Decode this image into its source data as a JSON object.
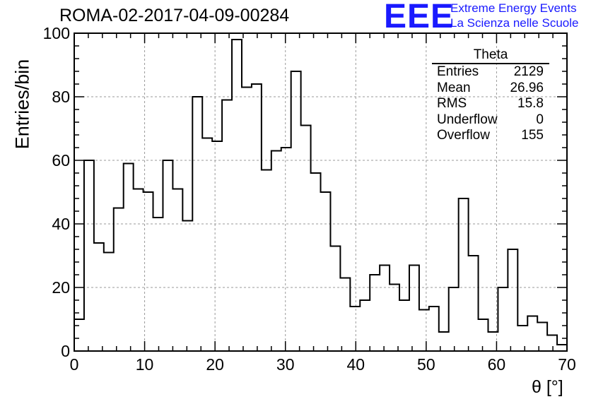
{
  "title": "ROMA-02-2017-04-09-00284",
  "logo": {
    "mark": "EEE",
    "line1": "Extreme Energy Events",
    "line2": "La Scienza nelle Scuole",
    "color": "#1a1aff"
  },
  "stats": {
    "title": "Theta",
    "rows": [
      {
        "label": "Entries",
        "value": "2129"
      },
      {
        "label": "Mean",
        "value": "26.96"
      },
      {
        "label": "RMS",
        "value": "15.8"
      },
      {
        "label": "Underflow",
        "value": "0"
      },
      {
        "label": "Overflow",
        "value": "155"
      }
    ]
  },
  "chart_data": {
    "type": "histogram",
    "title": "ROMA-02-2017-04-09-00284",
    "xlabel": "θ [°]",
    "ylabel": "Entries/bin",
    "xlim": [
      0,
      70
    ],
    "ylim": [
      0,
      100
    ],
    "bin_width": 1.4,
    "bin_edges_start": 0,
    "values": [
      10,
      60,
      34,
      31,
      45,
      59,
      51,
      50,
      42,
      60,
      51,
      41,
      80,
      67,
      66,
      79,
      98,
      83,
      84,
      57,
      63,
      64,
      88,
      71,
      56,
      50,
      33,
      23,
      14,
      16,
      24,
      27,
      21,
      16,
      27,
      13,
      14,
      6,
      20,
      48,
      30,
      10,
      6,
      20,
      32,
      8,
      11,
      9,
      5,
      2
    ],
    "x_major_ticks": [
      0,
      10,
      20,
      30,
      40,
      50,
      60,
      70
    ],
    "y_major_ticks": [
      0,
      20,
      40,
      60,
      80,
      100
    ],
    "grid": true,
    "line_color": "#000000"
  }
}
